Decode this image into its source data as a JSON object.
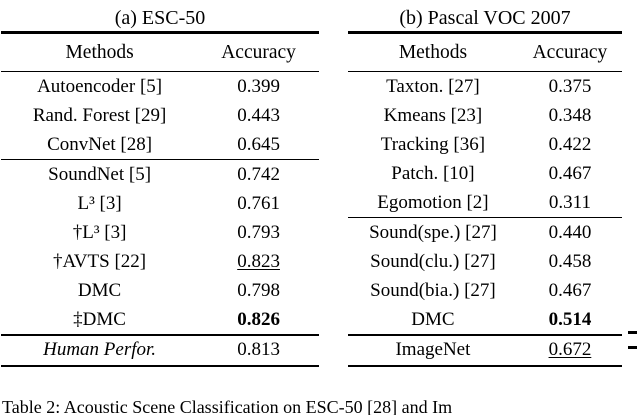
{
  "page": {
    "background": "#ffffff",
    "text_color": "#000000"
  },
  "tables": [
    {
      "title": "(a) ESC-50",
      "headers": {
        "method": "Methods",
        "accuracy": "Accuracy"
      },
      "groups": [
        {
          "rows": [
            {
              "method": "Autoencoder [5]",
              "accuracy": "0.399"
            },
            {
              "method": "Rand. Forest [29]",
              "accuracy": "0.443"
            },
            {
              "method": "ConvNet [28]",
              "accuracy": "0.645"
            }
          ]
        },
        {
          "rows": [
            {
              "method": "SoundNet [5]",
              "accuracy": "0.742"
            },
            {
              "method": "L³ [3]",
              "accuracy": "0.761"
            },
            {
              "method": "†L³ [3]",
              "accuracy": "0.793"
            },
            {
              "method": "†AVTS [22]",
              "accuracy": "0.823",
              "accuracy_style": "underline"
            },
            {
              "method": "DMC",
              "accuracy": "0.798"
            },
            {
              "method": "‡DMC",
              "accuracy": "0.826",
              "accuracy_style": "bold"
            }
          ]
        },
        {
          "rows": [
            {
              "method": "Human Perfor.",
              "accuracy": "0.813",
              "method_style": "italic"
            }
          ]
        }
      ]
    },
    {
      "title": "(b) Pascal VOC 2007",
      "headers": {
        "method": "Methods",
        "accuracy": "Accuracy"
      },
      "groups": [
        {
          "rows": [
            {
              "method": "Taxton. [27]",
              "accuracy": "0.375"
            },
            {
              "method": "Kmeans [23]",
              "accuracy": "0.348"
            },
            {
              "method": "Tracking [36]",
              "accuracy": "0.422"
            },
            {
              "method": "Patch. [10]",
              "accuracy": "0.467"
            },
            {
              "method": "Egomotion [2]",
              "accuracy": "0.311"
            }
          ]
        },
        {
          "rows": [
            {
              "method": "Sound(spe.) [27]",
              "accuracy": "0.440"
            },
            {
              "method": "Sound(clu.) [27]",
              "accuracy": "0.458"
            },
            {
              "method": "Sound(bia.) [27]",
              "accuracy": "0.467"
            },
            {
              "method": "DMC",
              "accuracy": "0.514",
              "accuracy_style": "bold"
            }
          ]
        },
        {
          "rows": [
            {
              "method": "ImageNet",
              "accuracy": "0.672",
              "accuracy_style": "underline"
            }
          ]
        }
      ]
    }
  ],
  "caption": {
    "text": "Table 2: Acoustic Scene Classification on ESC-50 [28] and Im"
  }
}
